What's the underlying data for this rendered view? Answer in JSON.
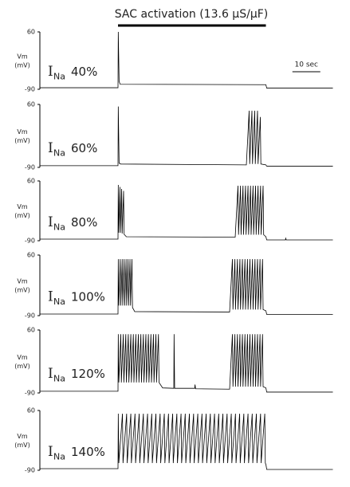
{
  "title": "SAC activation (13.6 µS/µF)",
  "stimulus": {
    "start": 28,
    "end": 81
  },
  "scale_bar": {
    "label": "10 sec",
    "start": 90.5,
    "length": 10
  },
  "chart_data": [
    {
      "type": "line",
      "ylabel": "Vm",
      "yunit": "(mV)",
      "current": "I",
      "current_sub": "Na",
      "percent": "40%",
      "xlim": [
        0,
        105
      ],
      "ylim": [
        -90,
        60
      ],
      "yticks": [
        60,
        -90
      ],
      "color": "#000000",
      "x": [
        0,
        28,
        28.1,
        28.4,
        28.8,
        81,
        81.3,
        105
      ],
      "values": [
        -86,
        -86,
        60,
        -70,
        -77,
        -78,
        -87,
        -87
      ]
    },
    {
      "type": "line",
      "ylabel": "Vm",
      "yunit": "(mV)",
      "current": "I",
      "current_sub": "Na",
      "percent": "60%",
      "xlim": [
        0,
        105
      ],
      "ylim": [
        -90,
        60
      ],
      "yticks": [
        60,
        -90
      ],
      "color": "#000000",
      "x": [
        0,
        28,
        28.1,
        28.4,
        29,
        74,
        75,
        75.2,
        76,
        76.2,
        77,
        77.2,
        78,
        78.2,
        79,
        79.2,
        81,
        81.3,
        105
      ],
      "values": [
        -86,
        -86,
        55,
        -80,
        -82,
        -84,
        45,
        -82,
        45,
        -82,
        45,
        -82,
        45,
        -82,
        30,
        -82,
        -84,
        -87,
        -87
      ]
    },
    {
      "type": "line",
      "ylabel": "Vm",
      "yunit": "(mV)",
      "current": "I",
      "current_sub": "Na",
      "percent": "80%",
      "xlim": [
        0,
        105
      ],
      "ylim": [
        -90,
        60
      ],
      "yticks": [
        60,
        -90
      ],
      "color": "#000000",
      "x": [
        0,
        28,
        28.1,
        28.3,
        28.7,
        28.9,
        29.3,
        29.5,
        30,
        30.2,
        31,
        70,
        71,
        71.2,
        71.9,
        72.1,
        72.8,
        73,
        73.7,
        73.9,
        74.6,
        74.8,
        75.5,
        75.7,
        76.4,
        76.6,
        77.3,
        77.5,
        78.2,
        78.4,
        79.1,
        79.3,
        80,
        80.2,
        81,
        81.3,
        88,
        88.1,
        88.3,
        105
      ],
      "values": [
        -86,
        -86,
        50,
        -70,
        45,
        -70,
        40,
        -72,
        35,
        -74,
        -80,
        -81,
        48,
        -75,
        48,
        -75,
        48,
        -75,
        48,
        -75,
        48,
        -75,
        48,
        -75,
        48,
        -75,
        48,
        -75,
        48,
        -75,
        48,
        -75,
        48,
        -75,
        -80,
        -88,
        -88,
        -84,
        -88,
        -88
      ]
    },
    {
      "type": "line",
      "ylabel": "Vm",
      "yunit": "(mV)",
      "current": "I",
      "current_sub": "Na",
      "percent": "100%",
      "xlim": [
        0,
        105
      ],
      "ylim": [
        -90,
        60
      ],
      "yticks": [
        60,
        -90
      ],
      "color": "#000000",
      "x": [
        0,
        28,
        28.1,
        28.3,
        28.8,
        29,
        29.5,
        29.7,
        30.2,
        30.4,
        30.9,
        31.1,
        31.6,
        31.8,
        32.3,
        32.5,
        33,
        33.2,
        34,
        68,
        69,
        69.2,
        69.9,
        70.1,
        70.8,
        71,
        71.7,
        71.9,
        72.6,
        72.8,
        73.5,
        73.7,
        74.4,
        74.6,
        75.3,
        75.5,
        76.2,
        76.4,
        77.1,
        77.3,
        78,
        78.2,
        78.9,
        79.1,
        79.8,
        80,
        81,
        81.3,
        105
      ],
      "values": [
        -86,
        -86,
        50,
        -65,
        50,
        -65,
        50,
        -65,
        50,
        -65,
        50,
        -65,
        50,
        -65,
        50,
        -65,
        50,
        -70,
        -80,
        -81,
        50,
        -75,
        50,
        -75,
        50,
        -75,
        50,
        -75,
        50,
        -75,
        50,
        -75,
        50,
        -75,
        50,
        -75,
        50,
        -75,
        50,
        -75,
        50,
        -75,
        50,
        -75,
        50,
        -75,
        -78,
        -87,
        -87
      ]
    },
    {
      "type": "line",
      "ylabel": "Vm",
      "yunit": "(mV)",
      "current": "I",
      "current_sub": "Na",
      "percent": "120%",
      "xlim": [
        0,
        105
      ],
      "ylim": [
        -90,
        60
      ],
      "yticks": [
        60,
        -90
      ],
      "color": "#000000",
      "x": [
        0,
        28,
        28.1,
        28.3,
        29,
        29.2,
        29.9,
        30.1,
        30.8,
        31,
        31.7,
        31.9,
        32.6,
        32.8,
        33.5,
        33.7,
        34.4,
        34.6,
        35.3,
        35.5,
        36.2,
        36.4,
        37.1,
        37.3,
        38,
        38.2,
        38.9,
        39.1,
        39.8,
        40,
        40.7,
        40.9,
        41.6,
        41.8,
        42.5,
        42.7,
        44,
        48,
        48.1,
        48.3,
        55.5,
        55.6,
        55.8,
        68,
        69,
        69.2,
        69.9,
        70.1,
        70.8,
        71,
        71.7,
        71.9,
        72.6,
        72.8,
        73.5,
        73.7,
        74.4,
        74.6,
        75.3,
        75.5,
        76.2,
        76.4,
        77.1,
        77.3,
        78,
        78.2,
        78.9,
        79.1,
        79.8,
        80,
        81,
        81.3,
        105
      ],
      "values": [
        -86,
        -86,
        50,
        -65,
        50,
        -65,
        50,
        -65,
        50,
        -65,
        50,
        -65,
        50,
        -65,
        50,
        -65,
        50,
        -65,
        50,
        -65,
        50,
        -65,
        50,
        -65,
        50,
        -65,
        50,
        -65,
        50,
        -65,
        50,
        -65,
        50,
        -65,
        50,
        -65,
        -78,
        -79,
        50,
        -79,
        -79,
        -70,
        -80,
        -81,
        50,
        -75,
        50,
        -75,
        50,
        -75,
        50,
        -75,
        50,
        -75,
        50,
        -75,
        50,
        -75,
        50,
        -75,
        50,
        -75,
        50,
        -75,
        50,
        -75,
        50,
        -75,
        50,
        -75,
        -78,
        -88,
        -88
      ]
    },
    {
      "type": "line",
      "ylabel": "Vm",
      "yunit": "(mV)",
      "current": "I",
      "current_sub": "Na",
      "percent": "140%",
      "xlim": [
        0,
        105
      ],
      "ylim": [
        -90,
        60
      ],
      "yticks": [
        60,
        -90
      ],
      "color": "#000000",
      "x": [
        0,
        28,
        28.1,
        28.3,
        29.6,
        29.8,
        31.1,
        31.3,
        32.6,
        32.8,
        34.1,
        34.3,
        35.6,
        35.8,
        37.1,
        37.3,
        38.6,
        38.8,
        40.1,
        40.3,
        41.6,
        41.8,
        43.1,
        43.3,
        44.6,
        44.8,
        46.1,
        46.3,
        47.6,
        47.8,
        49.1,
        49.3,
        50.6,
        50.8,
        52.1,
        52.3,
        53.6,
        53.8,
        55.1,
        55.3,
        56.6,
        56.8,
        58.1,
        58.3,
        59.6,
        59.8,
        61.1,
        61.3,
        62.6,
        62.8,
        64.1,
        64.3,
        65.6,
        65.8,
        67.1,
        67.3,
        68.6,
        68.8,
        70.1,
        70.3,
        71.6,
        71.8,
        73.1,
        73.3,
        74.6,
        74.8,
        76.1,
        76.3,
        77.6,
        77.8,
        79.1,
        79.3,
        80.6,
        80.8,
        81,
        81.3,
        105
      ],
      "values": [
        -86,
        -86,
        52,
        -72,
        52,
        -72,
        52,
        -72,
        52,
        -72,
        52,
        -72,
        52,
        -72,
        52,
        -72,
        52,
        -72,
        52,
        -72,
        52,
        -72,
        52,
        -72,
        52,
        -72,
        52,
        -72,
        52,
        -72,
        52,
        -72,
        52,
        -72,
        52,
        -72,
        52,
        -72,
        52,
        -72,
        52,
        -72,
        52,
        -72,
        52,
        -72,
        52,
        -72,
        52,
        -72,
        52,
        -72,
        52,
        -72,
        52,
        -72,
        52,
        -72,
        52,
        -72,
        52,
        -72,
        52,
        -72,
        52,
        -72,
        52,
        -72,
        52,
        -72,
        52,
        -72,
        52,
        -72,
        -75,
        -88,
        -88
      ]
    }
  ]
}
